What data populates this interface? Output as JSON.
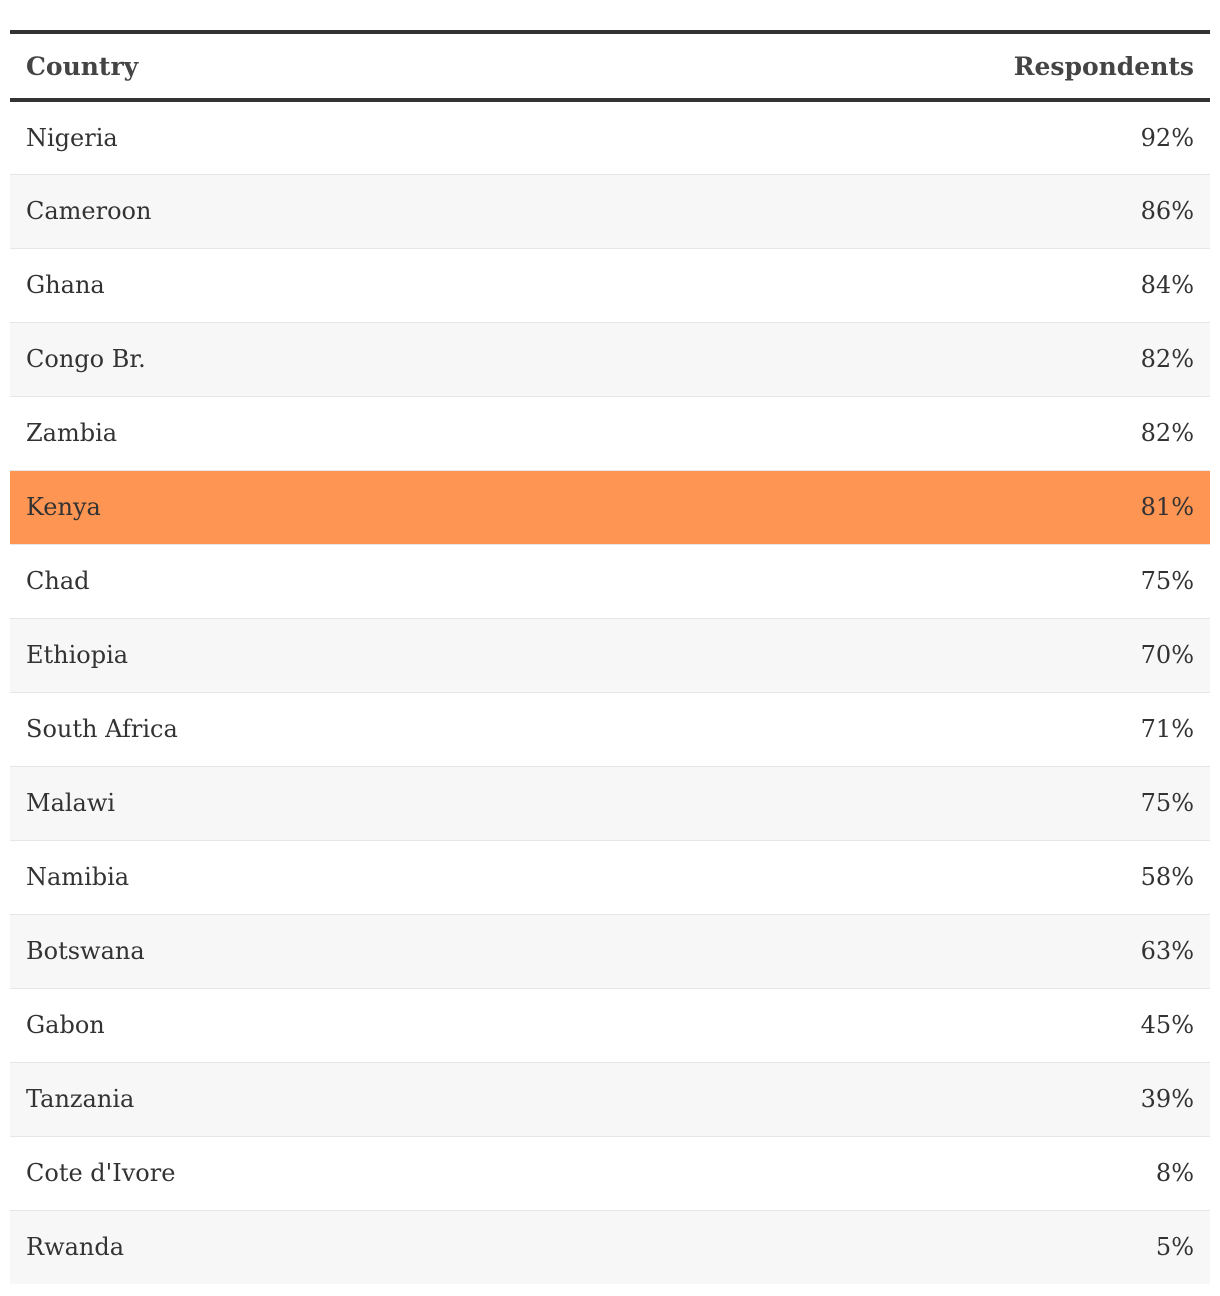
{
  "chart_data": {
    "type": "table",
    "columns": [
      "Country",
      "Respondents"
    ],
    "highlight_color": "#ff9552",
    "stripe_color": "#f7f7f7",
    "highlighted_row": "Kenya",
    "rows": [
      {
        "country": "Nigeria",
        "respondents": "92%",
        "value": 92
      },
      {
        "country": "Cameroon",
        "respondents": "86%",
        "value": 86
      },
      {
        "country": "Ghana",
        "respondents": "84%",
        "value": 84
      },
      {
        "country": "Congo Br.",
        "respondents": "82%",
        "value": 82
      },
      {
        "country": "Zambia",
        "respondents": "82%",
        "value": 82
      },
      {
        "country": "Kenya",
        "respondents": "81%",
        "value": 81
      },
      {
        "country": "Chad",
        "respondents": "75%",
        "value": 75
      },
      {
        "country": "Ethiopia",
        "respondents": "70%",
        "value": 70
      },
      {
        "country": "South Africa",
        "respondents": "71%",
        "value": 71
      },
      {
        "country": "Malawi",
        "respondents": "75%",
        "value": 75
      },
      {
        "country": "Namibia",
        "respondents": "58%",
        "value": 58
      },
      {
        "country": "Botswana",
        "respondents": "63%",
        "value": 63
      },
      {
        "country": "Gabon",
        "respondents": "45%",
        "value": 45
      },
      {
        "country": "Tanzania",
        "respondents": "39%",
        "value": 39
      },
      {
        "country": "Cote d'Ivore",
        "respondents": "8%",
        "value": 8
      },
      {
        "country": "Rwanda",
        "respondents": "5%",
        "value": 5
      }
    ]
  }
}
